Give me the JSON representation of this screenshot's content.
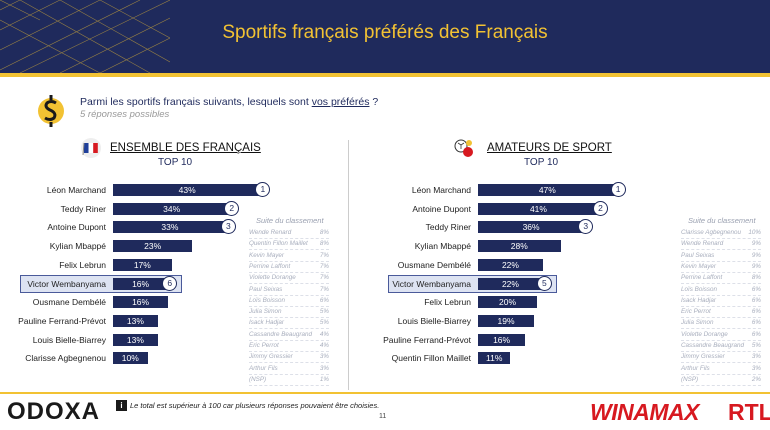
{
  "header": {
    "title": "Sportifs français préférés des Français"
  },
  "question": {
    "text_before": "Parmi les sportifs français suivants, lesquels sont ",
    "text_underlined": "vos préférés",
    "text_after": " ?",
    "sub": "5 réponses possibles"
  },
  "colors": {
    "navy": "#1f2a5c",
    "gold": "#f2c233",
    "red": "#d71920",
    "highlight": "#dde3f2"
  },
  "icons": {
    "question": "dollar-sign-icon",
    "left_panel": "french-flag-icon",
    "right_panel": "sports-balls-icon",
    "note": "info-icon"
  },
  "panels": [
    {
      "title": "ENSEMBLE DES FRANÇAIS",
      "subtitle": "TOP 10",
      "suite_title": "Suite du classement",
      "suite": [
        {
          "name": "Wende Renard",
          "value": "8%"
        },
        {
          "name": "Quentin Fillon Maillet",
          "value": "8%"
        },
        {
          "name": "Kevin Mayer",
          "value": "7%"
        },
        {
          "name": "Perrine Laffont",
          "value": "7%"
        },
        {
          "name": "Violette Dorange",
          "value": "7%"
        },
        {
          "name": "Paul Seixas",
          "value": "7%"
        },
        {
          "name": "Loïs Boisson",
          "value": "6%"
        },
        {
          "name": "Julia Simon",
          "value": "5%"
        },
        {
          "name": "Isack Hadjar",
          "value": "5%"
        },
        {
          "name": "Cassandre Beaugrand",
          "value": "4%"
        },
        {
          "name": "Eric Perrot",
          "value": "4%"
        },
        {
          "name": "Jimmy Gressier",
          "value": "3%"
        },
        {
          "name": "Arthur Fils",
          "value": "3%"
        },
        {
          "name": "(NSP)",
          "value": "1%"
        }
      ]
    },
    {
      "title": "AMATEURS DE SPORT",
      "subtitle": "TOP 10",
      "suite_title": "Suite du classement",
      "suite": [
        {
          "name": "Clarisse Agbegnenou",
          "value": "10%"
        },
        {
          "name": "Wende Renard",
          "value": "9%"
        },
        {
          "name": "Paul Seixas",
          "value": "9%"
        },
        {
          "name": "Kevin Mayer",
          "value": "9%"
        },
        {
          "name": "Perrine Laffont",
          "value": "8%"
        },
        {
          "name": "Loïs Boisson",
          "value": "6%"
        },
        {
          "name": "Isack Hadjar",
          "value": "6%"
        },
        {
          "name": "Eric Perrot",
          "value": "6%"
        },
        {
          "name": "Julia Simon",
          "value": "6%"
        },
        {
          "name": "Violette Dorange",
          "value": "6%"
        },
        {
          "name": "Cassandre Beaugrand",
          "value": "5%"
        },
        {
          "name": "Jimmy Gressier",
          "value": "3%"
        },
        {
          "name": "Arthur Fils",
          "value": "3%"
        },
        {
          "name": "(NSP)",
          "value": "2%"
        }
      ]
    }
  ],
  "chart_data": [
    {
      "type": "bar",
      "title": "ENSEMBLE DES FRANÇAIS",
      "categories": [
        "Léon Marchand",
        "Teddy Riner",
        "Antoine Dupont",
        "Kylian Mbappé",
        "Felix Lebrun",
        "Victor Wembanyama",
        "Ousmane Dembélé",
        "Pauline Ferrand-Prévot",
        "Louis Bielle-Biarrey",
        "Clarisse Agbegnenou"
      ],
      "values": [
        43,
        34,
        33,
        23,
        17,
        16,
        16,
        13,
        13,
        10
      ],
      "labels": [
        "43%",
        "34%",
        "33%",
        "23%",
        "17%",
        "16%",
        "16%",
        "13%",
        "13%",
        "10%"
      ],
      "badges": [
        {
          "index": 0,
          "label": "1"
        },
        {
          "index": 1,
          "label": "2"
        },
        {
          "index": 2,
          "label": "3"
        },
        {
          "index": 5,
          "label": "6"
        }
      ],
      "highlight_index": 5
    },
    {
      "type": "bar",
      "title": "AMATEURS DE SPORT",
      "categories": [
        "Léon Marchand",
        "Antoine Dupont",
        "Teddy Riner",
        "Kylian Mbappé",
        "Ousmane Dembélé",
        "Victor Wembanyama",
        "Felix Lebrun",
        "Louis Bielle-Biarrey",
        "Pauline Ferrand-Prévot",
        "Quentin Fillon Maillet"
      ],
      "values": [
        47,
        41,
        36,
        28,
        22,
        22,
        20,
        19,
        16,
        11
      ],
      "labels": [
        "47%",
        "41%",
        "36%",
        "28%",
        "22%",
        "22%",
        "20%",
        "19%",
        "16%",
        "11%"
      ],
      "badges": [
        {
          "index": 0,
          "label": "1"
        },
        {
          "index": 1,
          "label": "2"
        },
        {
          "index": 2,
          "label": "3"
        },
        {
          "index": 5,
          "label": "5"
        }
      ],
      "highlight_index": 5
    }
  ],
  "footer": {
    "brand_left": "ODOXA",
    "note_icon_label": "i",
    "note": "Le total est supérieur à 100 car plusieurs réponses pouvaient être choisies.",
    "page": "11",
    "brand_right_1": "WINAMAX",
    "brand_right_2": "RTL"
  }
}
